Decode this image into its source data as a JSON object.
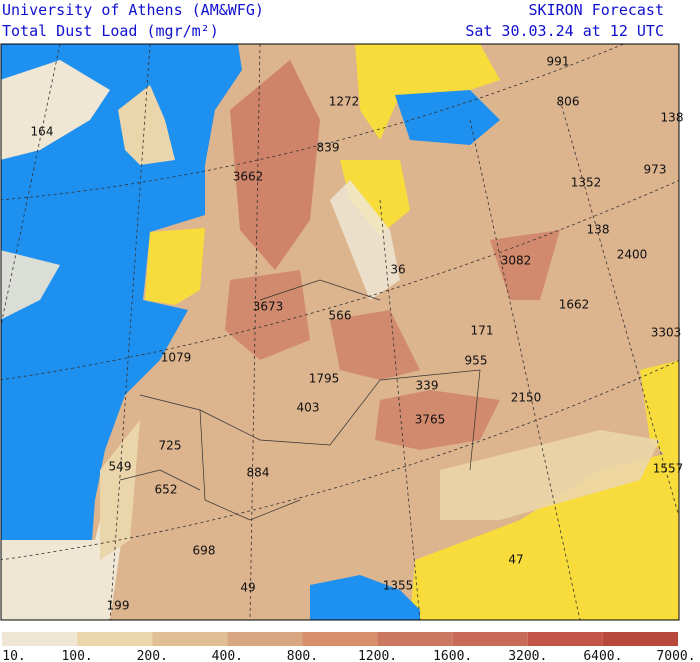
{
  "header": {
    "left": [
      "University of Athens (AM&WFG)",
      "Total Dust Load (mgr/m²)"
    ],
    "right": [
      "SKIRON Forecast",
      "Sat 30.03.24 at 12 UTC"
    ]
  },
  "map": {
    "labels": [
      "991",
      "806",
      "138",
      "164",
      "1272",
      "839",
      "3662",
      "973",
      "1352",
      "138",
      "2400",
      "3082",
      "36",
      "3673",
      "566",
      "1662",
      "171",
      "3303",
      "1079",
      "955",
      "1795",
      "339",
      "403",
      "2150",
      "3765",
      "725",
      "549",
      "884",
      "652",
      "1557",
      "698",
      "47",
      "49",
      "1355",
      "199"
    ]
  },
  "colorbar": {
    "labels": [
      "10.",
      "100.",
      "200.",
      "400.",
      "800.",
      "1200.",
      "1600.",
      "3200.",
      "6400.",
      "7000."
    ],
    "colors": [
      "#efe6d4",
      "#ebd5aa",
      "#e0bf94",
      "#d8a680",
      "#d98f6c",
      "#cc775f",
      "#c86a59",
      "#c25548",
      "#b8473c"
    ]
  }
}
